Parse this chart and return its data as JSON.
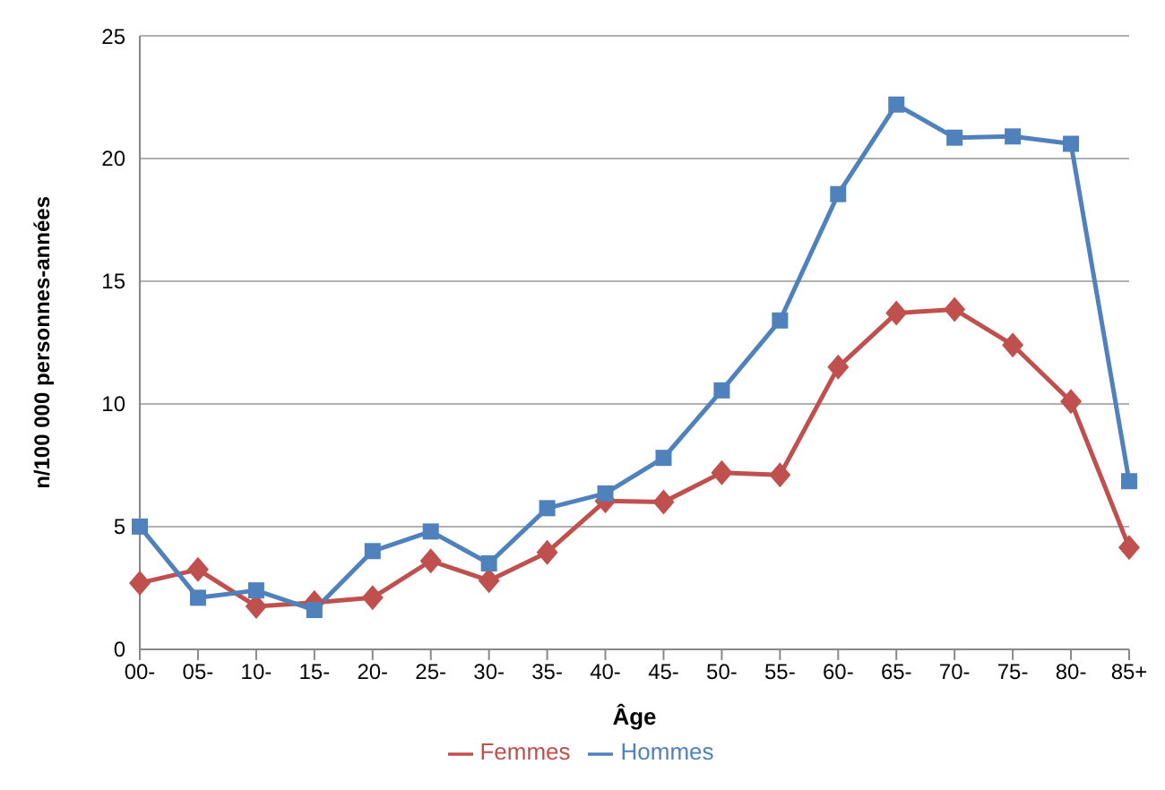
{
  "chart_data": {
    "type": "line",
    "xlabel": "Âge",
    "ylabel": "n/100 000 personnes-années",
    "categories": [
      "00-",
      "05-",
      "10-",
      "15-",
      "20-",
      "25-",
      "30-",
      "35-",
      "40-",
      "45-",
      "50-",
      "55-",
      "60-",
      "65-",
      "70-",
      "75-",
      "80-",
      "85+"
    ],
    "series": [
      {
        "name": "Femmes",
        "color": "#c0504d",
        "marker": "diamond",
        "values": [
          2.7,
          3.25,
          1.75,
          1.9,
          2.1,
          3.6,
          2.8,
          3.95,
          6.05,
          6.0,
          7.2,
          7.1,
          11.5,
          13.7,
          13.85,
          12.4,
          10.1,
          4.15
        ]
      },
      {
        "name": "Hommes",
        "color": "#4f81bd",
        "marker": "square",
        "values": [
          5.0,
          2.1,
          2.4,
          1.6,
          4.0,
          4.8,
          3.5,
          5.75,
          6.35,
          7.8,
          10.55,
          13.4,
          18.55,
          22.2,
          20.85,
          20.9,
          20.6,
          6.85
        ]
      }
    ],
    "ylim": [
      0,
      25
    ],
    "yticks": [
      0,
      5,
      10,
      15,
      20,
      25
    ],
    "grid": "y",
    "legend": "bottom"
  }
}
